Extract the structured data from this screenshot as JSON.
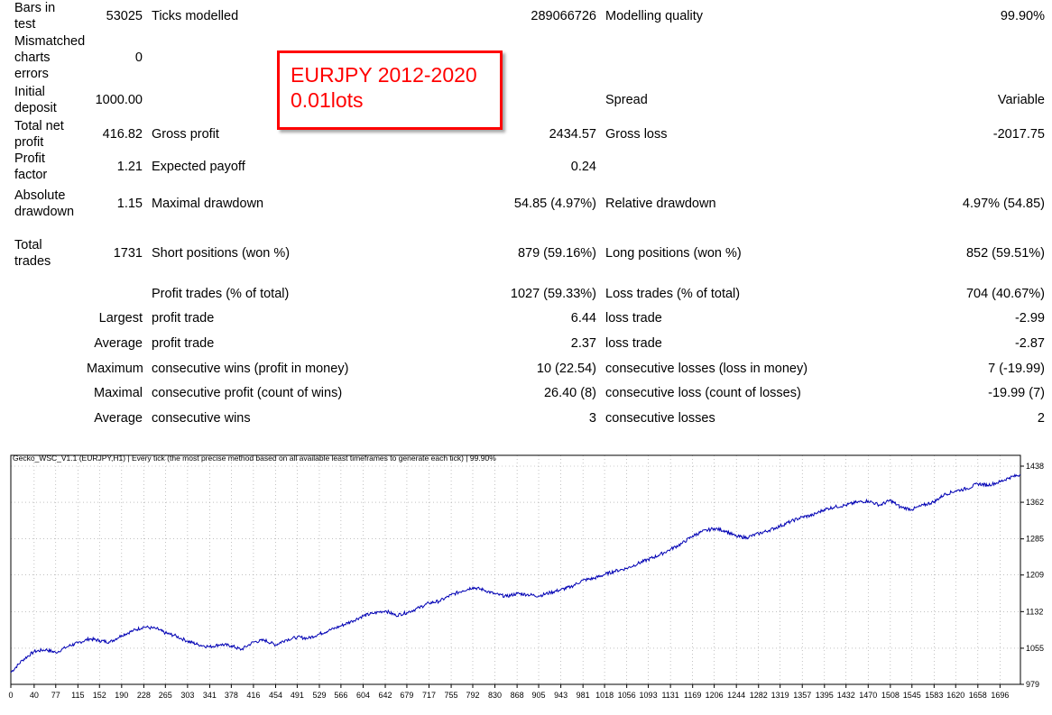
{
  "report": {
    "rows": [
      {
        "l1": "Bars in test",
        "v1": "53025",
        "l2": "Ticks modelled",
        "v2": "289066726",
        "l3": "Modelling quality",
        "v3": "99.90%"
      },
      {
        "l1": "Mismatched charts errors",
        "v1": "0",
        "l2": "",
        "v2": "",
        "l3": "",
        "v3": ""
      },
      {
        "l1": "Initial deposit",
        "v1": "1000.00",
        "l2": "",
        "v2": "",
        "l3": "Spread",
        "v3": "Variable"
      },
      {
        "l1": "Total net profit",
        "v1": "416.82",
        "l2": "Gross profit",
        "v2": "2434.57",
        "l3": "Gross loss",
        "v3": "-2017.75"
      },
      {
        "l1": "Profit factor",
        "v1": "1.21",
        "l2": "Expected payoff",
        "v2": "0.24",
        "l3": "",
        "v3": ""
      },
      {
        "l1": "Absolute drawdown",
        "v1": "1.15",
        "l2": "Maximal drawdown",
        "v2": "54.85 (4.97%)",
        "l3": "Relative drawdown",
        "v3": "4.97% (54.85)"
      },
      {
        "l1": "Total trades",
        "v1": "1731",
        "l2": "Short positions (won %)",
        "v2": "879 (59.16%)",
        "l3": "Long positions (won %)",
        "v3": "852 (59.51%)"
      },
      {
        "l1": "",
        "v1": "",
        "l2": "Profit trades (% of total)",
        "v2": "1027 (59.33%)",
        "l3": "Loss trades (% of total)",
        "v3": "704 (40.67%)"
      },
      {
        "l1": "",
        "v1": "Largest",
        "l2": "profit trade",
        "v2": "6.44",
        "l3": "loss trade",
        "v3": "-2.99"
      },
      {
        "l1": "",
        "v1": "Average",
        "l2": "profit trade",
        "v2": "2.37",
        "l3": "loss trade",
        "v3": "-2.87"
      },
      {
        "l1": "",
        "v1": "Maximum",
        "l2": "consecutive wins (profit in money)",
        "v2": "10 (22.54)",
        "l3": "consecutive losses (loss in money)",
        "v3": "7 (-19.99)"
      },
      {
        "l1": "",
        "v1": "Maximal",
        "l2": "consecutive profit (count of wins)",
        "v2": "26.40 (8)",
        "l3": "consecutive loss (count of losses)",
        "v3": "-19.99 (7)"
      },
      {
        "l1": "",
        "v1": "Average",
        "l2": "consecutive wins",
        "v2": "3",
        "l3": "consecutive losses",
        "v3": "2"
      }
    ]
  },
  "annotation": {
    "line1": "EURJPY 2012-2020",
    "line2": "0.01lots",
    "color": "#ff0000"
  },
  "chart_data": {
    "type": "line",
    "title": "Gecko_WSC_V1.1 (EURJPY,H1) | Every tick (the most precise method based on all available least timeframes to generate each tick) | 99.90%",
    "xlabel": "",
    "ylabel": "",
    "xlim": [
      0,
      1731
    ],
    "ylim": [
      979,
      1438
    ],
    "x_ticks": [
      0,
      40,
      77,
      115,
      152,
      190,
      228,
      265,
      303,
      341,
      378,
      416,
      454,
      491,
      529,
      566,
      604,
      642,
      679,
      717,
      755,
      792,
      830,
      868,
      905,
      943,
      981,
      1018,
      1056,
      1093,
      1131,
      1169,
      1206,
      1244,
      1282,
      1319,
      1357,
      1395,
      1432,
      1470,
      1508,
      1545,
      1583,
      1620,
      1658,
      1696
    ],
    "y_ticks": [
      1438,
      1362,
      1285,
      1209,
      1132,
      1055,
      979
    ],
    "grid": true,
    "series": [
      {
        "color": "#0000b4",
        "x": [
          0,
          20,
          40,
          60,
          77,
          100,
          115,
          135,
          152,
          170,
          190,
          210,
          228,
          250,
          265,
          280,
          303,
          320,
          341,
          360,
          378,
          395,
          416,
          435,
          454,
          470,
          491,
          510,
          529,
          545,
          566,
          585,
          604,
          620,
          642,
          660,
          679,
          700,
          717,
          735,
          755,
          775,
          792,
          810,
          830,
          850,
          868,
          885,
          905,
          925,
          943,
          960,
          981,
          1000,
          1018,
          1035,
          1056,
          1075,
          1093,
          1110,
          1131,
          1150,
          1169,
          1185,
          1206,
          1225,
          1244,
          1262,
          1282,
          1300,
          1319,
          1338,
          1357,
          1375,
          1395,
          1412,
          1432,
          1450,
          1470,
          1490,
          1508,
          1525,
          1545,
          1565,
          1583,
          1600,
          1620,
          1640,
          1658,
          1675,
          1696,
          1712,
          1731
        ],
        "y": [
          1004,
          1030,
          1048,
          1052,
          1046,
          1060,
          1066,
          1075,
          1071,
          1068,
          1082,
          1092,
          1100,
          1096,
          1087,
          1082,
          1070,
          1063,
          1058,
          1063,
          1060,
          1052,
          1068,
          1072,
          1062,
          1072,
          1078,
          1076,
          1085,
          1092,
          1102,
          1112,
          1123,
          1128,
          1134,
          1124,
          1130,
          1140,
          1150,
          1154,
          1167,
          1176,
          1183,
          1178,
          1169,
          1164,
          1170,
          1168,
          1165,
          1172,
          1178,
          1184,
          1198,
          1202,
          1210,
          1217,
          1223,
          1233,
          1242,
          1250,
          1263,
          1275,
          1291,
          1300,
          1307,
          1302,
          1290,
          1288,
          1296,
          1303,
          1312,
          1322,
          1331,
          1335,
          1347,
          1352,
          1356,
          1362,
          1365,
          1356,
          1366,
          1352,
          1347,
          1356,
          1363,
          1378,
          1386,
          1391,
          1401,
          1398,
          1405,
          1414,
          1420
        ]
      }
    ]
  }
}
